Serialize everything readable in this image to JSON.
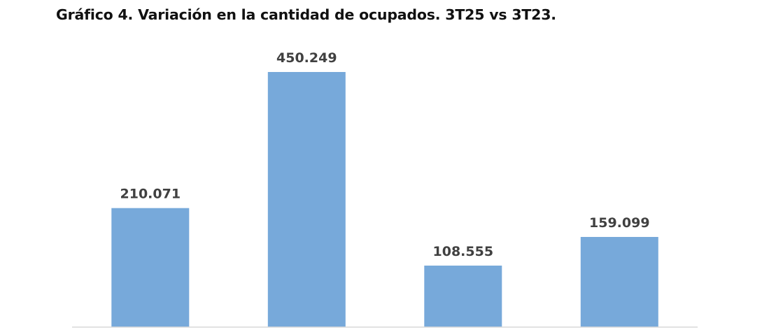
{
  "chart_data": {
    "type": "bar",
    "title": "Gráfico 4. Variación en la cantidad de ocupados. 3T25 vs 3T23.",
    "categories": [
      "",
      "",
      "",
      ""
    ],
    "values": [
      210071,
      450249,
      108555,
      159099
    ],
    "value_labels": [
      "210.071",
      "450.249",
      "108.555",
      "159.099"
    ],
    "bar_color": "#77A9DA",
    "axis_color": "#D9D9D9",
    "label_color": "#404040",
    "ylim": [
      0,
      450249
    ],
    "grid": false,
    "legend": "none"
  }
}
